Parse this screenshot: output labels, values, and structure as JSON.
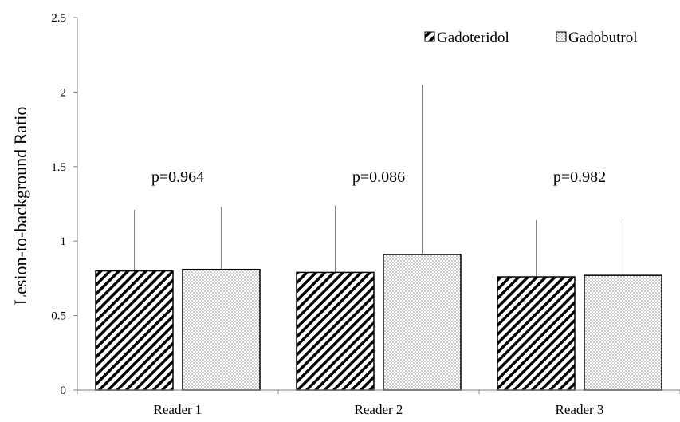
{
  "chart_data": {
    "type": "bar",
    "title": "",
    "xlabel": "",
    "ylabel": "Lesion-to-background Ratio",
    "ylim": [
      0,
      2.5
    ],
    "yticks": [
      "0",
      "0.5",
      "1",
      "1.5",
      "2",
      "2.5"
    ],
    "ytick_values": [
      0,
      0.5,
      1,
      1.5,
      2,
      2.5
    ],
    "grid": false,
    "legend_position": "top-right",
    "categories": [
      "Reader 1",
      "Reader 2",
      "Reader 3"
    ],
    "series": [
      {
        "name": "Gadoteridol",
        "pattern": "diagonal-hatch",
        "values": [
          0.8,
          0.79,
          0.76
        ],
        "error_upper": [
          1.21,
          1.24,
          1.14
        ]
      },
      {
        "name": "Gadobutrol",
        "pattern": "dotted",
        "values": [
          0.81,
          0.91,
          0.77
        ],
        "error_upper": [
          1.23,
          2.05,
          1.13
        ]
      }
    ],
    "annotations": [
      "p=0.964",
      "p=0.086",
      "p=0.982"
    ]
  }
}
